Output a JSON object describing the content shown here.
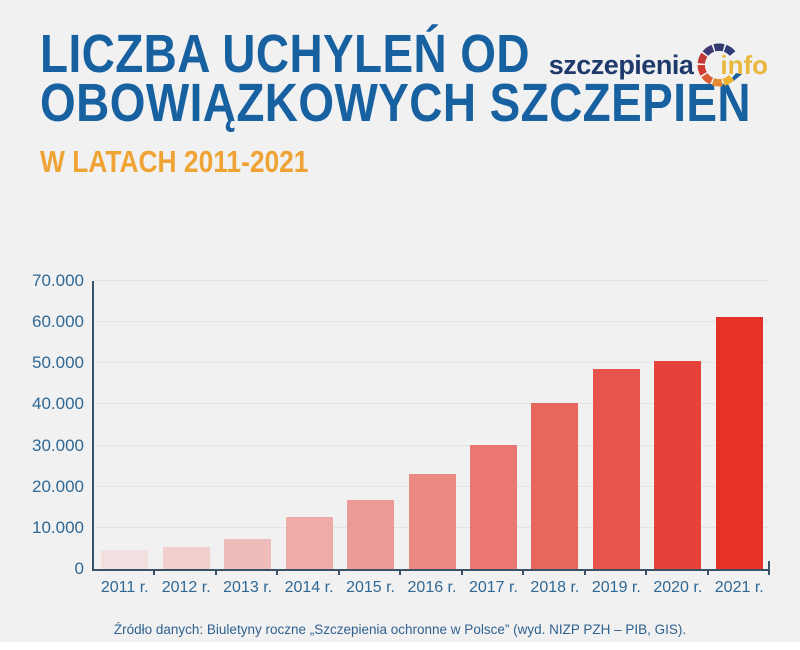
{
  "theme": {
    "bg": "#f1f1f2",
    "title": "#1761a1",
    "subtitle": "#efa334",
    "navy": "#1e3a6c",
    "gold": "#e8b73c",
    "axis": "#3a5268",
    "tick_label": "#2f6894",
    "grid": "#e4e4e7",
    "footer_text": "#30618e",
    "strip": "#ffffff"
  },
  "header": {
    "title_line1": "LICZBA UCHYLEŃ OD",
    "title_line2": "OBOWIĄZKOWYCH SZCZEPIEŃ",
    "subtitle": "W LATACH 2011-2021"
  },
  "logo": {
    "text_left": "szczepienia",
    "text_right": "info",
    "ring_colors": [
      "#2e3d7a",
      "#303a70",
      "#3d3a76",
      "#c23a37",
      "#cf3b30",
      "#dc5b31",
      "#e6882e",
      "#edb32e"
    ]
  },
  "chart_data": {
    "type": "bar",
    "title": "Liczba uchyleń od obowiązkowych szczepień w latach 2011-2021",
    "categories": [
      "2011 r.",
      "2012 r.",
      "2013 r.",
      "2014 r.",
      "2015 r.",
      "2016 r.",
      "2017 r.",
      "2018 r.",
      "2019 r.",
      "2020 r.",
      "2021 r."
    ],
    "values": [
      4689,
      5340,
      7248,
      12681,
      16689,
      23147,
      30090,
      40342,
      48609,
      50575,
      61368
    ],
    "bar_colors": [
      "#f1e0df",
      "#f0cfcd",
      "#eebdbb",
      "#edaca8",
      "#ec9a96",
      "#eb8983",
      "#ea7771",
      "#e9665e",
      "#e7544c",
      "#e64239",
      "#e53127"
    ],
    "xlabel": "",
    "ylabel": "",
    "ylim": [
      0,
      70000
    ],
    "ytick_step": 10000,
    "ytick_labels": [
      "0",
      "10.000",
      "20.000",
      "30.000",
      "40.000",
      "50.000",
      "60.000",
      "70.000"
    ],
    "grid": true,
    "legend": false
  },
  "footer": {
    "source": "Źródło danych: Biuletyny roczne „Szczepienia ochronne w Polsce” (wyd. NIZP PZH – PIB, GIS)."
  }
}
